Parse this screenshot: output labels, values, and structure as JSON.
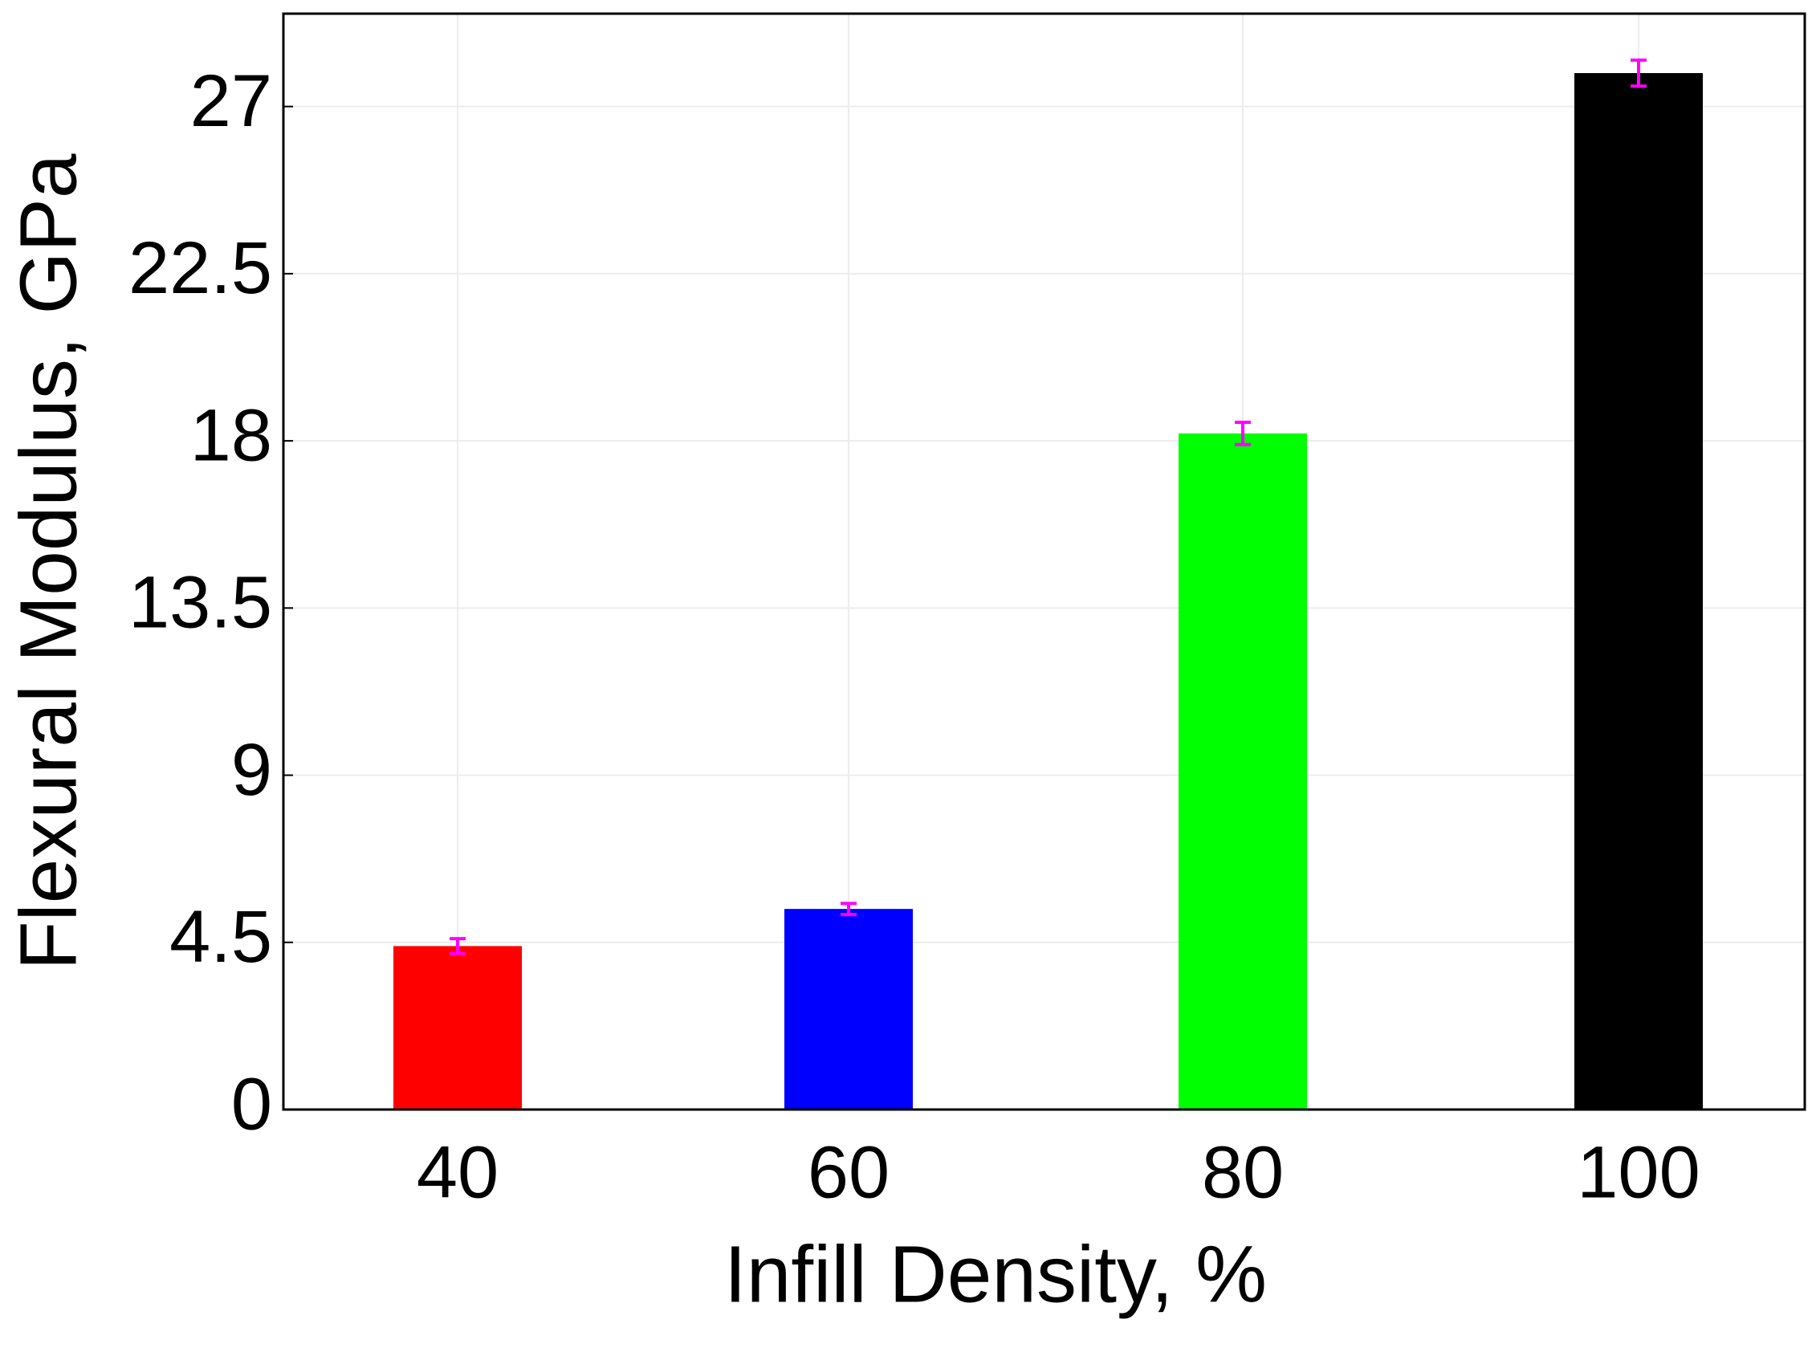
{
  "chart_data": {
    "type": "bar",
    "xlabel": "Infill Density, %",
    "ylabel": "Flexural Modulus,  GPa",
    "categories": [
      "40",
      "60",
      "80",
      "100"
    ],
    "values": [
      4.4,
      5.4,
      18.2,
      27.9
    ],
    "errors": [
      0.2,
      0.15,
      0.3,
      0.35
    ],
    "colors": [
      "#ff0000",
      "#0000ff",
      "#00ff00",
      "#000000"
    ],
    "error_color": "#ff00ff",
    "ylim": [
      0,
      29.5
    ],
    "yticks": [
      0,
      4.5,
      9,
      13.5,
      18,
      22.5,
      27
    ],
    "grid": true
  }
}
